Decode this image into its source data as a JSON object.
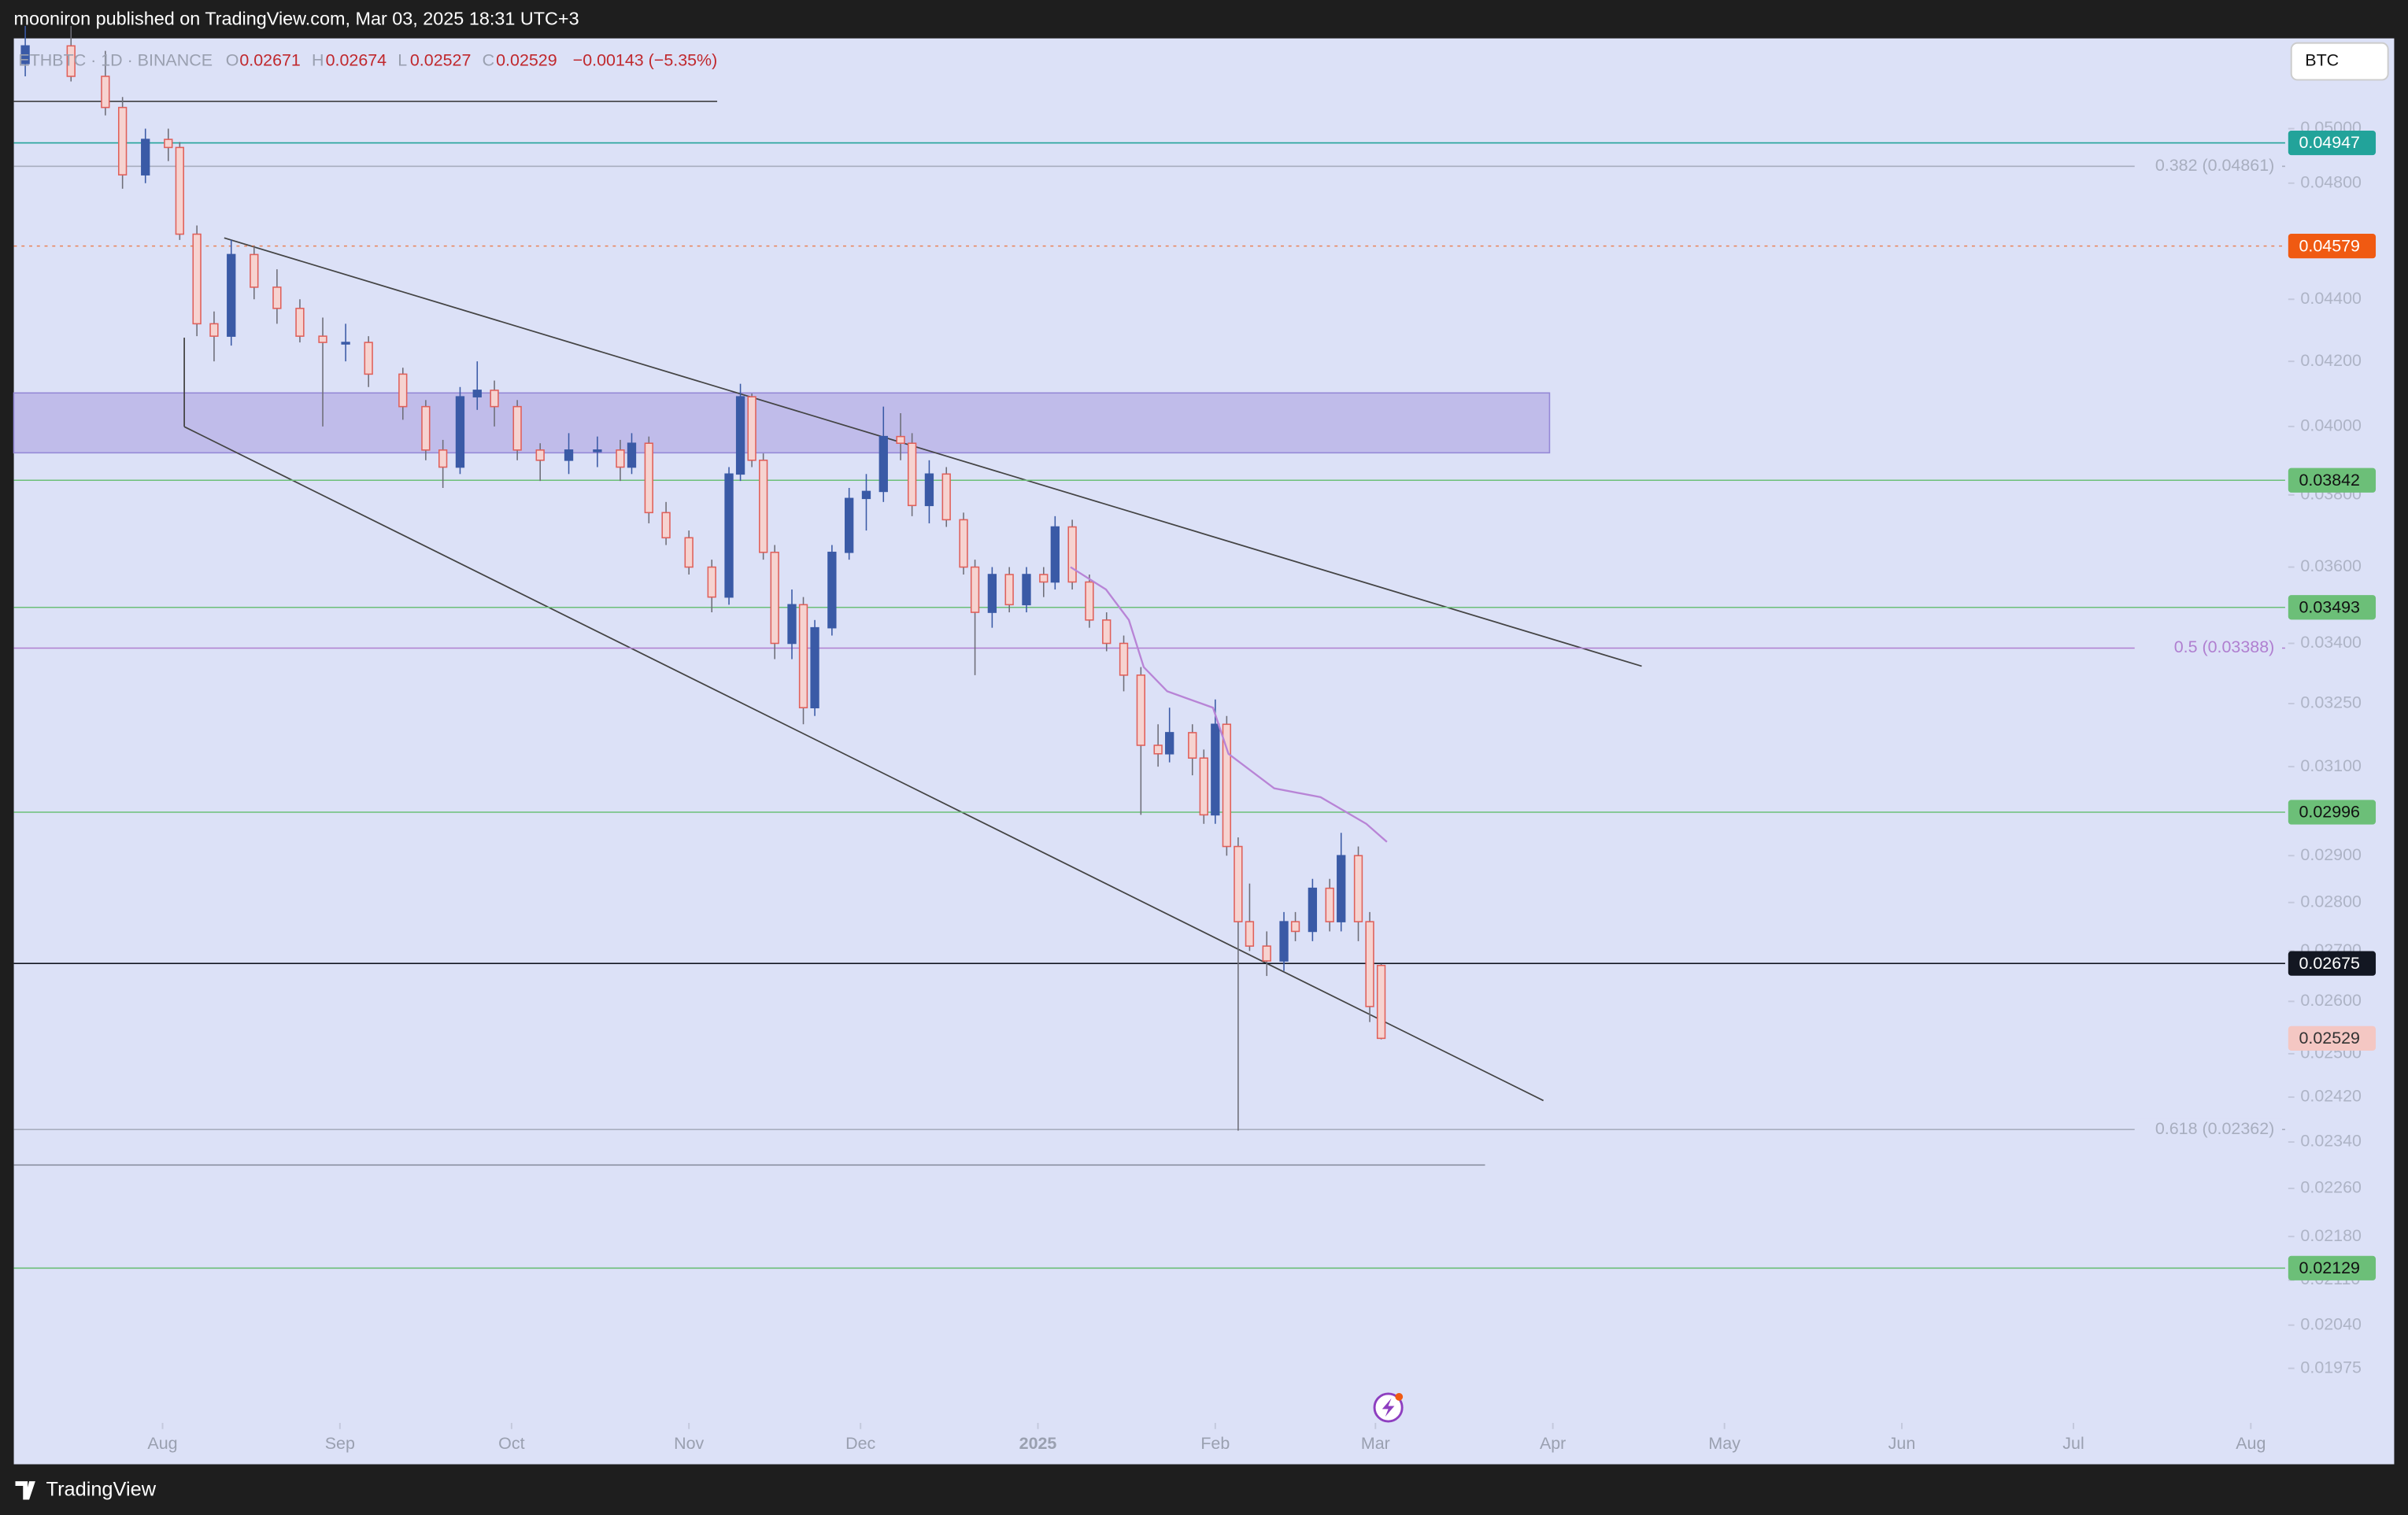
{
  "header": {
    "publisher": "mooniron published on TradingView.com, Mar 03, 2025 18:31 UTC+3",
    "symbol": "ETHBTC · 1D · BINANCE",
    "o": "O",
    "open": 0.02671,
    "h": "H",
    "high": 0.02674,
    "l": "L",
    "low": 0.02527,
    "c": "C",
    "close": 0.02529,
    "change": "−0.00143 (−5.35%)",
    "currency": "BTC"
  },
  "footer": {
    "brand": "TradingView"
  },
  "chart_data": {
    "type": "candlestick",
    "log_scale": true,
    "xlim": [
      -26,
      371
    ],
    "ylim": [
      0.0184,
      0.0535
    ],
    "xticks": [
      {
        "value": 0,
        "label": "Aug"
      },
      {
        "value": 31,
        "label": "Sep"
      },
      {
        "value": 61,
        "label": "Oct"
      },
      {
        "value": 92,
        "label": "Nov"
      },
      {
        "value": 122,
        "label": "Dec"
      },
      {
        "value": 153,
        "label": "2025"
      },
      {
        "value": 184,
        "label": "Feb"
      },
      {
        "value": 212,
        "label": "Mar"
      },
      {
        "value": 243,
        "label": "Apr"
      },
      {
        "value": 273,
        "label": "May"
      },
      {
        "value": 304,
        "label": "Jun"
      },
      {
        "value": 334,
        "label": "Jul"
      },
      {
        "value": 365,
        "label": "Aug"
      }
    ],
    "yticks": [
      {
        "value": 0.05,
        "label": "0.05000"
      },
      {
        "value": 0.048,
        "label": "0.04800"
      },
      {
        "value": 0.044,
        "label": "0.04400"
      },
      {
        "value": 0.042,
        "label": "0.04200"
      },
      {
        "value": 0.04,
        "label": "0.04000"
      },
      {
        "value": 0.038,
        "label": "0.03800"
      },
      {
        "value": 0.036,
        "label": "0.03600"
      },
      {
        "value": 0.034,
        "label": "0.03400"
      },
      {
        "value": 0.0325,
        "label": "0.03250"
      },
      {
        "value": 0.031,
        "label": "0.03100"
      },
      {
        "value": 0.029,
        "label": "0.02900"
      },
      {
        "value": 0.028,
        "label": "0.02800"
      },
      {
        "value": 0.027,
        "label": "0.02700"
      },
      {
        "value": 0.026,
        "label": "0.02600"
      },
      {
        "value": 0.025,
        "label": "0.02500"
      },
      {
        "value": 0.0242,
        "label": "0.02420"
      },
      {
        "value": 0.0234,
        "label": "0.02340"
      },
      {
        "value": 0.0226,
        "label": "0.02260"
      },
      {
        "value": 0.0218,
        "label": "0.02180"
      },
      {
        "value": 0.0211,
        "label": "0.02110"
      },
      {
        "value": 0.0204,
        "label": "0.02040"
      },
      {
        "value": 0.01975,
        "label": "0.01975"
      }
    ],
    "up_color": "#3a5aa6",
    "down_color": "#e0605a",
    "candles": {
      "x": [
        -24,
        -16,
        -10,
        -7,
        -3,
        1,
        3,
        6,
        9,
        12,
        16,
        20,
        24,
        28,
        32,
        36,
        42,
        46,
        49,
        52,
        55,
        58,
        62,
        66,
        71,
        76,
        80,
        82,
        85,
        88,
        92,
        96,
        99,
        101,
        103,
        105,
        107,
        110,
        112,
        114,
        117,
        120,
        123,
        126,
        129,
        131,
        134,
        137,
        140,
        142,
        145,
        148,
        151,
        154,
        156,
        159,
        162,
        165,
        168,
        171,
        174,
        176,
        180,
        182,
        184,
        186,
        188,
        190,
        193,
        196,
        198,
        201,
        204,
        206,
        209,
        211,
        213
      ],
      "open": [
        0.0525,
        0.0532,
        0.052,
        0.0508,
        0.0483,
        0.0496,
        0.0493,
        0.0462,
        0.0432,
        0.0428,
        0.0455,
        0.0444,
        0.0437,
        0.0428,
        0.0426,
        0.0426,
        0.0416,
        0.0406,
        0.0393,
        0.0388,
        0.0409,
        0.0411,
        0.0406,
        0.0393,
        0.039,
        0.0393,
        0.0393,
        0.0388,
        0.0395,
        0.0375,
        0.0368,
        0.036,
        0.0352,
        0.0386,
        0.0409,
        0.039,
        0.0364,
        0.034,
        0.035,
        0.0324,
        0.0344,
        0.0364,
        0.0379,
        0.0381,
        0.0397,
        0.0395,
        0.0377,
        0.0386,
        0.0373,
        0.036,
        0.0348,
        0.0358,
        0.035,
        0.0358,
        0.0356,
        0.0371,
        0.0356,
        0.0346,
        0.034,
        0.0332,
        0.0315,
        0.0313,
        0.0318,
        0.0312,
        0.0299,
        0.032,
        0.0292,
        0.0276,
        0.0271,
        0.0268,
        0.0276,
        0.0274,
        0.0283,
        0.0276,
        0.029,
        0.0276,
        0.02671
      ],
      "high": [
        0.054,
        0.054,
        0.053,
        0.0512,
        0.05,
        0.05,
        0.0495,
        0.0465,
        0.0436,
        0.046,
        0.0458,
        0.045,
        0.044,
        0.0434,
        0.0432,
        0.0428,
        0.0418,
        0.0408,
        0.0396,
        0.0412,
        0.042,
        0.0414,
        0.0408,
        0.0395,
        0.0398,
        0.0397,
        0.0396,
        0.0398,
        0.0397,
        0.0378,
        0.037,
        0.0362,
        0.0388,
        0.0413,
        0.041,
        0.0392,
        0.0366,
        0.0354,
        0.0352,
        0.0346,
        0.0366,
        0.0382,
        0.0386,
        0.0406,
        0.0404,
        0.0398,
        0.039,
        0.0388,
        0.0375,
        0.0362,
        0.036,
        0.036,
        0.036,
        0.036,
        0.0374,
        0.0373,
        0.0358,
        0.0348,
        0.0342,
        0.0334,
        0.032,
        0.0324,
        0.032,
        0.0314,
        0.0326,
        0.0322,
        0.0294,
        0.0284,
        0.0274,
        0.0278,
        0.0278,
        0.0285,
        0.0285,
        0.0295,
        0.0292,
        0.0278,
        0.02674
      ],
      "low": [
        0.052,
        0.0518,
        0.0505,
        0.0478,
        0.048,
        0.0488,
        0.046,
        0.0428,
        0.042,
        0.0425,
        0.044,
        0.0432,
        0.0426,
        0.04,
        0.042,
        0.0412,
        0.0402,
        0.039,
        0.0382,
        0.0386,
        0.0405,
        0.04,
        0.039,
        0.0384,
        0.0386,
        0.0388,
        0.0384,
        0.0386,
        0.0372,
        0.0366,
        0.0358,
        0.0348,
        0.035,
        0.0384,
        0.0388,
        0.0362,
        0.0336,
        0.0336,
        0.032,
        0.0322,
        0.0342,
        0.0362,
        0.037,
        0.0378,
        0.039,
        0.0374,
        0.0372,
        0.0371,
        0.0358,
        0.0332,
        0.0344,
        0.0348,
        0.0348,
        0.0352,
        0.0354,
        0.0354,
        0.0344,
        0.0338,
        0.0328,
        0.0299,
        0.031,
        0.0311,
        0.0308,
        0.0297,
        0.0297,
        0.029,
        0.0236,
        0.027,
        0.0265,
        0.0266,
        0.0272,
        0.0272,
        0.0274,
        0.0274,
        0.0272,
        0.0256,
        0.02527
      ],
      "close": [
        0.0532,
        0.052,
        0.0508,
        0.0483,
        0.0496,
        0.0493,
        0.0462,
        0.0432,
        0.0428,
        0.0455,
        0.0444,
        0.0437,
        0.0428,
        0.0426,
        0.0426,
        0.0416,
        0.0406,
        0.0393,
        0.0388,
        0.0409,
        0.0411,
        0.0406,
        0.0393,
        0.039,
        0.0393,
        0.0393,
        0.0388,
        0.0395,
        0.0375,
        0.0368,
        0.036,
        0.0352,
        0.0386,
        0.0409,
        0.039,
        0.0364,
        0.034,
        0.035,
        0.0324,
        0.0344,
        0.0364,
        0.0379,
        0.0381,
        0.0397,
        0.0395,
        0.0377,
        0.0386,
        0.0373,
        0.036,
        0.0348,
        0.0358,
        0.035,
        0.0358,
        0.0356,
        0.0371,
        0.0356,
        0.0346,
        0.034,
        0.0332,
        0.0315,
        0.0313,
        0.0318,
        0.0312,
        0.0299,
        0.032,
        0.0292,
        0.0276,
        0.0271,
        0.0268,
        0.0276,
        0.0274,
        0.0283,
        0.0276,
        0.029,
        0.0276,
        0.0259,
        0.02529
      ]
    },
    "overlay": {
      "color": "#b884d6",
      "x": [
        158.7,
        164.9,
        168.9,
        171.5,
        175.6,
        183.6,
        186.3,
        194.3,
        202.4,
        210.4,
        214
      ],
      "values": [
        0.036,
        0.0354,
        0.0346,
        0.0334,
        0.0328,
        0.0324,
        0.0313,
        0.0305,
        0.0303,
        0.0297,
        0.0293
      ]
    },
    "price_lines": [
      {
        "value": 0.04947,
        "color": "#22a39a",
        "text_color": "#ffffff"
      },
      {
        "value": 0.04579,
        "color": "#f05a12",
        "text_color": "#ffffff",
        "dashed": true
      },
      {
        "value": 0.03842,
        "color": "#6cbf78",
        "text_color": "#111111"
      },
      {
        "value": 0.03493,
        "color": "#6cbf78",
        "text_color": "#111111"
      },
      {
        "value": 0.02996,
        "color": "#6cbf78",
        "text_color": "#111111"
      },
      {
        "value": 0.02675,
        "color": "#131722",
        "text_color": "#ffffff"
      },
      {
        "value": 0.02529,
        "color": "#f4c7c3",
        "text_color": "#333333"
      },
      {
        "value": 0.02129,
        "color": "#6cbf78",
        "text_color": "#111111"
      }
    ],
    "fib_levels": [
      {
        "value": 0.04861,
        "label": "0.382 (0.04861)",
        "color": "#a8aebf"
      },
      {
        "value": 0.03388,
        "label": "0.5 (0.03388)",
        "color": "#b07fd0"
      },
      {
        "value": 0.02362,
        "label": "0.618 (0.02362)",
        "color": "#a8aebf"
      }
    ]
  }
}
